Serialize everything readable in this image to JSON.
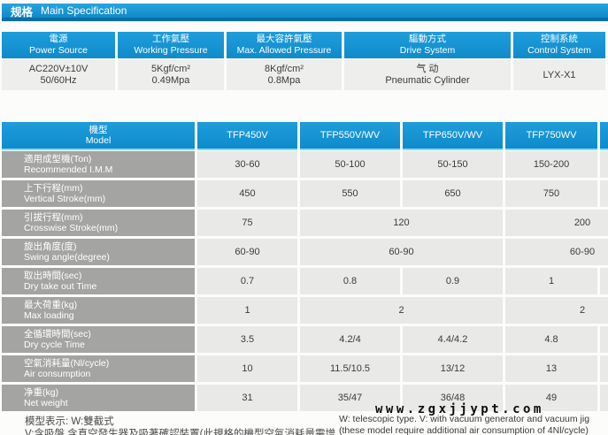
{
  "page": {
    "title_zh": "规格",
    "title_en": "Main Specification"
  },
  "colors": {
    "accent_blue": "#1494d4",
    "title_underline_blue": "#0d6da7",
    "header_edge_cyan": "#84daf4",
    "label_gray": "#a4a4a3",
    "cell_gray": "#e9e9e8",
    "text_dark": "#3b3b3b"
  },
  "spec_table": {
    "columns": [
      {
        "header_zh": "電源",
        "header_en": "Power Source",
        "value_line1": "AC220V±10V",
        "value_line2": "50/60Hz"
      },
      {
        "header_zh": "工作氣壓",
        "header_en": "Working Pressure",
        "value_line1": "5Kgf/cm²",
        "value_line2": "0.49Mpa"
      },
      {
        "header_zh": "最大容許氣壓",
        "header_en": "Max. Allowed Pressure",
        "value_line1": "8Kgf/cm²",
        "value_line2": "0.8Mpa"
      },
      {
        "header_zh": "驅動方式",
        "header_en": "Drive System",
        "value_line1": "气 动",
        "value_line2": "Pneumatic Cylinder"
      },
      {
        "header_zh": "控制系統",
        "header_en": "Control System",
        "value_line1": "LYX-X1",
        "value_line2": ""
      }
    ]
  },
  "model_table": {
    "header": {
      "zh": "機型",
      "en": "Model"
    },
    "models": [
      "TFP450V",
      "TFP550V/WV",
      "TFP650V/WV",
      "TFP750WV"
    ],
    "rows": [
      {
        "label_zh": "適用成型機(Ton)",
        "label_en": "Recommended I.M.M",
        "cells": [
          "30-60",
          "50-100",
          "50-150",
          "150-200"
        ]
      },
      {
        "label_zh": "上下行程(mm)",
        "label_en": "Vertical Stroke(mm)",
        "cells": [
          "450",
          "550",
          "650",
          "750"
        ]
      },
      {
        "label_zh": "引拔行程(mm)",
        "label_en": "Crosswise Stroke(mm)",
        "cells": [
          "75",
          "120",
          "200"
        ],
        "merged": true
      },
      {
        "label_zh": "旋出角度(度)",
        "label_en": "Swing angle(degree)",
        "cells": [
          "60-90",
          "60-90",
          "60-90"
        ],
        "merged": true
      },
      {
        "label_zh": "取出時間(sec)",
        "label_en": "Dry take out Time",
        "cells": [
          "0.7",
          "0.8",
          "0.9",
          "1"
        ]
      },
      {
        "label_zh": "最大荷重(kg)",
        "label_en": "Max loading",
        "cells": [
          "1",
          "2",
          "2"
        ],
        "merged": true
      },
      {
        "label_zh": "全循環時間(sec)",
        "label_en": "Dry cycle Time",
        "cells": [
          "3.5",
          "4.2/4",
          "4.4/4.2",
          "4.8"
        ]
      },
      {
        "label_zh": "空氣消耗量(Nl/cycle)",
        "label_en": "Air consumption",
        "cells": [
          "10",
          "11.5/10.5",
          "13/12",
          "13"
        ]
      },
      {
        "label_zh": "净重(kg)",
        "label_en": "Net weight",
        "cells": [
          "31",
          "35/47",
          "36/48",
          "49"
        ]
      }
    ]
  },
  "footnotes": {
    "left_line1": "模型表示: W:雙截式",
    "left_line2": "V:含吸盤 含真空發生器及吸著確認裝置(此規格的機型空氣消耗量需增加4Nl/cycle)",
    "right_line1": "W: telescopic type.  V: with vacuum generator and vacuum jig",
    "right_line2": "(these model require additional air consumption of 4Nl/cycle)"
  },
  "watermark": "www.zgxjjypt.com"
}
